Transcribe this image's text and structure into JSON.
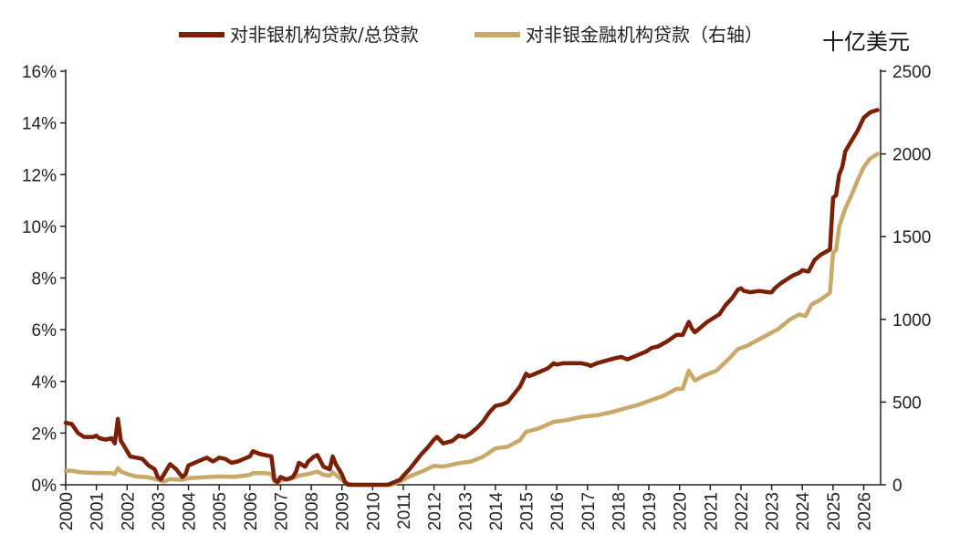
{
  "chart_data": {
    "type": "line",
    "title": "",
    "xlabel": "",
    "right_axis_unit": "十亿美元",
    "x_ticks": [
      "2000",
      "2001",
      "2002",
      "2003",
      "2004",
      "2005",
      "2006",
      "2007",
      "2008",
      "2009",
      "2010",
      "2011",
      "2012",
      "2013",
      "2014",
      "2015",
      "2016",
      "2017",
      "2018",
      "2019",
      "2020",
      "2021",
      "2022",
      "2023",
      "2024",
      "2025",
      "2026"
    ],
    "y_left_ticks": [
      "0%",
      "2%",
      "4%",
      "6%",
      "8%",
      "10%",
      "12%",
      "14%",
      "16%"
    ],
    "y_left_lim": [
      0,
      16
    ],
    "y_right_ticks": [
      "0",
      "500",
      "1000",
      "1500",
      "2000",
      "2500"
    ],
    "y_right_lim": [
      0,
      2500
    ],
    "legend_position": "top",
    "series": [
      {
        "name": "对非银机构贷款/总贷款",
        "axis": "left",
        "color": "#7b1f06",
        "points": [
          [
            2000.0,
            2.4
          ],
          [
            2000.2,
            2.35
          ],
          [
            2000.4,
            2.0
          ],
          [
            2000.6,
            1.85
          ],
          [
            2000.9,
            1.85
          ],
          [
            2001.0,
            1.9
          ],
          [
            2001.1,
            1.8
          ],
          [
            2001.3,
            1.75
          ],
          [
            2001.5,
            1.8
          ],
          [
            2001.6,
            1.6
          ],
          [
            2001.7,
            2.55
          ],
          [
            2001.8,
            1.7
          ],
          [
            2001.9,
            1.5
          ],
          [
            2002.0,
            1.3
          ],
          [
            2002.1,
            1.1
          ],
          [
            2002.3,
            1.05
          ],
          [
            2002.5,
            1.0
          ],
          [
            2002.7,
            0.75
          ],
          [
            2002.9,
            0.6
          ],
          [
            2003.0,
            0.3
          ],
          [
            2003.1,
            0.2
          ],
          [
            2003.2,
            0.4
          ],
          [
            2003.4,
            0.8
          ],
          [
            2003.6,
            0.6
          ],
          [
            2003.8,
            0.3
          ],
          [
            2003.9,
            0.4
          ],
          [
            2004.0,
            0.75
          ],
          [
            2004.2,
            0.85
          ],
          [
            2004.4,
            0.95
          ],
          [
            2004.6,
            1.05
          ],
          [
            2004.8,
            0.9
          ],
          [
            2005.0,
            1.05
          ],
          [
            2005.2,
            1.0
          ],
          [
            2005.4,
            0.85
          ],
          [
            2005.6,
            0.9
          ],
          [
            2005.8,
            1.0
          ],
          [
            2006.0,
            1.1
          ],
          [
            2006.1,
            1.3
          ],
          [
            2006.3,
            1.2
          ],
          [
            2006.5,
            1.15
          ],
          [
            2006.7,
            1.1
          ],
          [
            2006.8,
            0.2
          ],
          [
            2006.9,
            0.1
          ],
          [
            2007.0,
            0.3
          ],
          [
            2007.2,
            0.2
          ],
          [
            2007.4,
            0.3
          ],
          [
            2007.5,
            0.5
          ],
          [
            2007.6,
            0.85
          ],
          [
            2007.8,
            0.7
          ],
          [
            2007.9,
            0.9
          ],
          [
            2008.1,
            1.1
          ],
          [
            2008.2,
            1.15
          ],
          [
            2008.4,
            0.7
          ],
          [
            2008.6,
            0.6
          ],
          [
            2008.7,
            1.1
          ],
          [
            2008.8,
            0.8
          ],
          [
            2009.0,
            0.4
          ],
          [
            2009.1,
            0.1
          ],
          [
            2009.2,
            0.0
          ],
          [
            2010.0,
            0.0
          ],
          [
            2010.5,
            0.0
          ],
          [
            2010.7,
            0.1
          ],
          [
            2010.9,
            0.2
          ],
          [
            2011.0,
            0.35
          ],
          [
            2011.2,
            0.6
          ],
          [
            2011.4,
            0.9
          ],
          [
            2011.6,
            1.2
          ],
          [
            2011.8,
            1.45
          ],
          [
            2012.0,
            1.75
          ],
          [
            2012.1,
            1.85
          ],
          [
            2012.3,
            1.6
          ],
          [
            2012.6,
            1.7
          ],
          [
            2012.8,
            1.9
          ],
          [
            2013.0,
            1.85
          ],
          [
            2013.2,
            2.0
          ],
          [
            2013.4,
            2.2
          ],
          [
            2013.6,
            2.45
          ],
          [
            2013.8,
            2.8
          ],
          [
            2014.0,
            3.05
          ],
          [
            2014.2,
            3.1
          ],
          [
            2014.4,
            3.2
          ],
          [
            2014.6,
            3.5
          ],
          [
            2014.8,
            3.8
          ],
          [
            2015.0,
            4.3
          ],
          [
            2015.1,
            4.2
          ],
          [
            2015.3,
            4.3
          ],
          [
            2015.5,
            4.4
          ],
          [
            2015.7,
            4.5
          ],
          [
            2015.9,
            4.7
          ],
          [
            2016.0,
            4.65
          ],
          [
            2016.2,
            4.7
          ],
          [
            2016.5,
            4.7
          ],
          [
            2016.8,
            4.7
          ],
          [
            2017.0,
            4.65
          ],
          [
            2017.1,
            4.6
          ],
          [
            2017.3,
            4.7
          ],
          [
            2017.6,
            4.8
          ],
          [
            2017.9,
            4.9
          ],
          [
            2018.1,
            4.95
          ],
          [
            2018.3,
            4.85
          ],
          [
            2018.6,
            5.0
          ],
          [
            2018.9,
            5.15
          ],
          [
            2019.1,
            5.3
          ],
          [
            2019.3,
            5.35
          ],
          [
            2019.6,
            5.55
          ],
          [
            2019.9,
            5.8
          ],
          [
            2020.1,
            5.8
          ],
          [
            2020.3,
            6.3
          ],
          [
            2020.4,
            6.05
          ],
          [
            2020.5,
            5.9
          ],
          [
            2020.7,
            6.1
          ],
          [
            2020.9,
            6.3
          ],
          [
            2021.1,
            6.45
          ],
          [
            2021.3,
            6.6
          ],
          [
            2021.5,
            6.95
          ],
          [
            2021.7,
            7.2
          ],
          [
            2021.9,
            7.55
          ],
          [
            2022.0,
            7.6
          ],
          [
            2022.1,
            7.5
          ],
          [
            2022.3,
            7.45
          ],
          [
            2022.6,
            7.5
          ],
          [
            2022.9,
            7.45
          ],
          [
            2023.0,
            7.45
          ],
          [
            2023.1,
            7.6
          ],
          [
            2023.3,
            7.8
          ],
          [
            2023.5,
            7.95
          ],
          [
            2023.7,
            8.1
          ],
          [
            2023.9,
            8.2
          ],
          [
            2024.0,
            8.3
          ],
          [
            2024.2,
            8.25
          ],
          [
            2024.4,
            8.7
          ],
          [
            2024.6,
            8.9
          ],
          [
            2024.9,
            9.1
          ],
          [
            2025.0,
            11.1
          ],
          [
            2025.1,
            11.2
          ],
          [
            2025.2,
            12.0
          ],
          [
            2025.3,
            12.3
          ],
          [
            2025.4,
            12.9
          ],
          [
            2025.6,
            13.3
          ],
          [
            2025.8,
            13.7
          ],
          [
            2026.0,
            14.2
          ],
          [
            2026.2,
            14.4
          ],
          [
            2026.3,
            14.45
          ],
          [
            2026.45,
            14.5
          ]
        ]
      },
      {
        "name": "对非银金融机构贷款（右轴）",
        "axis": "right",
        "color": "#c8a96a",
        "points": [
          [
            2000.0,
            85
          ],
          [
            2000.2,
            85
          ],
          [
            2000.5,
            75
          ],
          [
            2001.0,
            72
          ],
          [
            2001.5,
            70
          ],
          [
            2001.6,
            65
          ],
          [
            2001.7,
            100
          ],
          [
            2001.8,
            80
          ],
          [
            2002.0,
            65
          ],
          [
            2002.3,
            50
          ],
          [
            2002.7,
            45
          ],
          [
            2003.0,
            30
          ],
          [
            2003.2,
            20
          ],
          [
            2003.4,
            35
          ],
          [
            2003.8,
            30
          ],
          [
            2004.0,
            40
          ],
          [
            2004.5,
            45
          ],
          [
            2005.0,
            50
          ],
          [
            2005.5,
            48
          ],
          [
            2006.0,
            60
          ],
          [
            2006.1,
            70
          ],
          [
            2006.5,
            70
          ],
          [
            2006.7,
            65
          ],
          [
            2006.8,
            20
          ],
          [
            2007.0,
            25
          ],
          [
            2007.4,
            40
          ],
          [
            2007.6,
            55
          ],
          [
            2007.9,
            65
          ],
          [
            2008.2,
            80
          ],
          [
            2008.4,
            60
          ],
          [
            2008.6,
            55
          ],
          [
            2008.7,
            75
          ],
          [
            2008.8,
            60
          ],
          [
            2009.0,
            30
          ],
          [
            2009.2,
            5
          ],
          [
            2009.4,
            0
          ],
          [
            2010.0,
            0
          ],
          [
            2010.6,
            0
          ],
          [
            2010.9,
            20
          ],
          [
            2011.2,
            50
          ],
          [
            2011.6,
            80
          ],
          [
            2012.0,
            115
          ],
          [
            2012.3,
            110
          ],
          [
            2012.8,
            130
          ],
          [
            2013.2,
            140
          ],
          [
            2013.6,
            170
          ],
          [
            2014.0,
            220
          ],
          [
            2014.4,
            230
          ],
          [
            2014.8,
            270
          ],
          [
            2015.0,
            320
          ],
          [
            2015.4,
            340
          ],
          [
            2015.9,
            380
          ],
          [
            2016.3,
            390
          ],
          [
            2016.8,
            410
          ],
          [
            2017.3,
            420
          ],
          [
            2017.8,
            440
          ],
          [
            2018.2,
            460
          ],
          [
            2018.6,
            480
          ],
          [
            2018.9,
            500
          ],
          [
            2019.2,
            520
          ],
          [
            2019.5,
            540
          ],
          [
            2019.9,
            580
          ],
          [
            2020.1,
            580
          ],
          [
            2020.3,
            690
          ],
          [
            2020.5,
            630
          ],
          [
            2020.8,
            660
          ],
          [
            2021.2,
            690
          ],
          [
            2021.6,
            760
          ],
          [
            2021.9,
            820
          ],
          [
            2022.2,
            840
          ],
          [
            2022.6,
            880
          ],
          [
            2022.9,
            910
          ],
          [
            2023.2,
            940
          ],
          [
            2023.6,
            1000
          ],
          [
            2023.9,
            1030
          ],
          [
            2024.1,
            1020
          ],
          [
            2024.3,
            1090
          ],
          [
            2024.6,
            1120
          ],
          [
            2024.9,
            1160
          ],
          [
            2025.0,
            1400
          ],
          [
            2025.1,
            1420
          ],
          [
            2025.2,
            1560
          ],
          [
            2025.4,
            1670
          ],
          [
            2025.6,
            1750
          ],
          [
            2025.8,
            1840
          ],
          [
            2026.0,
            1920
          ],
          [
            2026.2,
            1970
          ],
          [
            2026.45,
            2000
          ]
        ]
      }
    ]
  }
}
